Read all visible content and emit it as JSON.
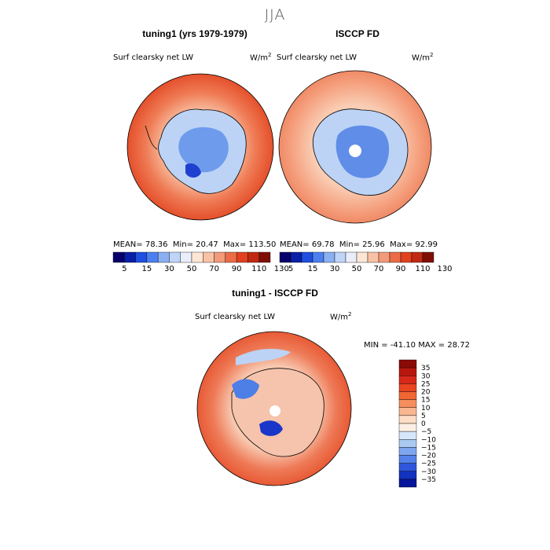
{
  "title": "JJA",
  "chart_data": [
    {
      "type": "heatmap",
      "title": "tuning1 (yrs 1979-1979)",
      "field": "Surf clearsky net LW",
      "units": "W/m",
      "units_exp": "2",
      "stats": {
        "mean_label": "MEAN=",
        "mean": "78.36",
        "min_label": "Min=",
        "min": "20.47",
        "max_label": "Max=",
        "max": "113.50"
      },
      "colorbar": {
        "orientation": "horizontal",
        "ticks": [
          "5",
          "15",
          "30",
          "50",
          "70",
          "90",
          "110",
          "130"
        ],
        "colors": [
          "#08006b",
          "#0a1fa8",
          "#1f4fe0",
          "#4c7ff0",
          "#8ab0f2",
          "#bfd5f8",
          "#e9eefa",
          "#fde7d4",
          "#f9c2a5",
          "#f29a7a",
          "#ec6c48",
          "#e1411f",
          "#c12a12",
          "#7f0f05"
        ]
      }
    },
    {
      "type": "heatmap",
      "title": "ISCCP FD",
      "field": "Surf clearsky net LW",
      "units": "W/m",
      "units_exp": "2",
      "stats": {
        "mean_label": "MEAN=",
        "mean": "69.78",
        "min_label": "Min=",
        "min": "25.96",
        "max_label": "Max=",
        "max": "92.99"
      },
      "colorbar": {
        "orientation": "horizontal",
        "ticks": [
          "5",
          "15",
          "30",
          "50",
          "70",
          "90",
          "110",
          "130"
        ],
        "colors": [
          "#08006b",
          "#0a1fa8",
          "#1f4fe0",
          "#4c7ff0",
          "#8ab0f2",
          "#bfd5f8",
          "#e9eefa",
          "#fde7d4",
          "#f9c2a5",
          "#f29a7a",
          "#ec6c48",
          "#e1411f",
          "#c12a12",
          "#7f0f05"
        ]
      }
    },
    {
      "type": "heatmap",
      "title": "tuning1 - ISCCP FD",
      "field": "Surf clearsky net LW",
      "units": "W/m",
      "units_exp": "2",
      "stats": {
        "min_label": "MIN =",
        "min": "-41.10",
        "max_label": "MAX =",
        "max": "28.72"
      },
      "colorbar": {
        "orientation": "vertical",
        "ticks": [
          "35",
          "30",
          "25",
          "20",
          "15",
          "10",
          "5",
          "0",
          "−5",
          "−10",
          "−15",
          "−20",
          "−25",
          "−30",
          "−35"
        ],
        "colors": [
          "#8c0a05",
          "#b8170d",
          "#d8281a",
          "#ea4421",
          "#f26633",
          "#f68e5e",
          "#f9b690",
          "#fcdcc4",
          "#fbefe5",
          "#d7e6fb",
          "#aac9f3",
          "#7fa6ee",
          "#5481ea",
          "#2f56dc",
          "#1232c0",
          "#06159a"
        ]
      }
    }
  ],
  "colors": {
    "ocean_warm": "#e8542d",
    "ice_cool": "#3f6fe0",
    "coast": "#000000"
  }
}
